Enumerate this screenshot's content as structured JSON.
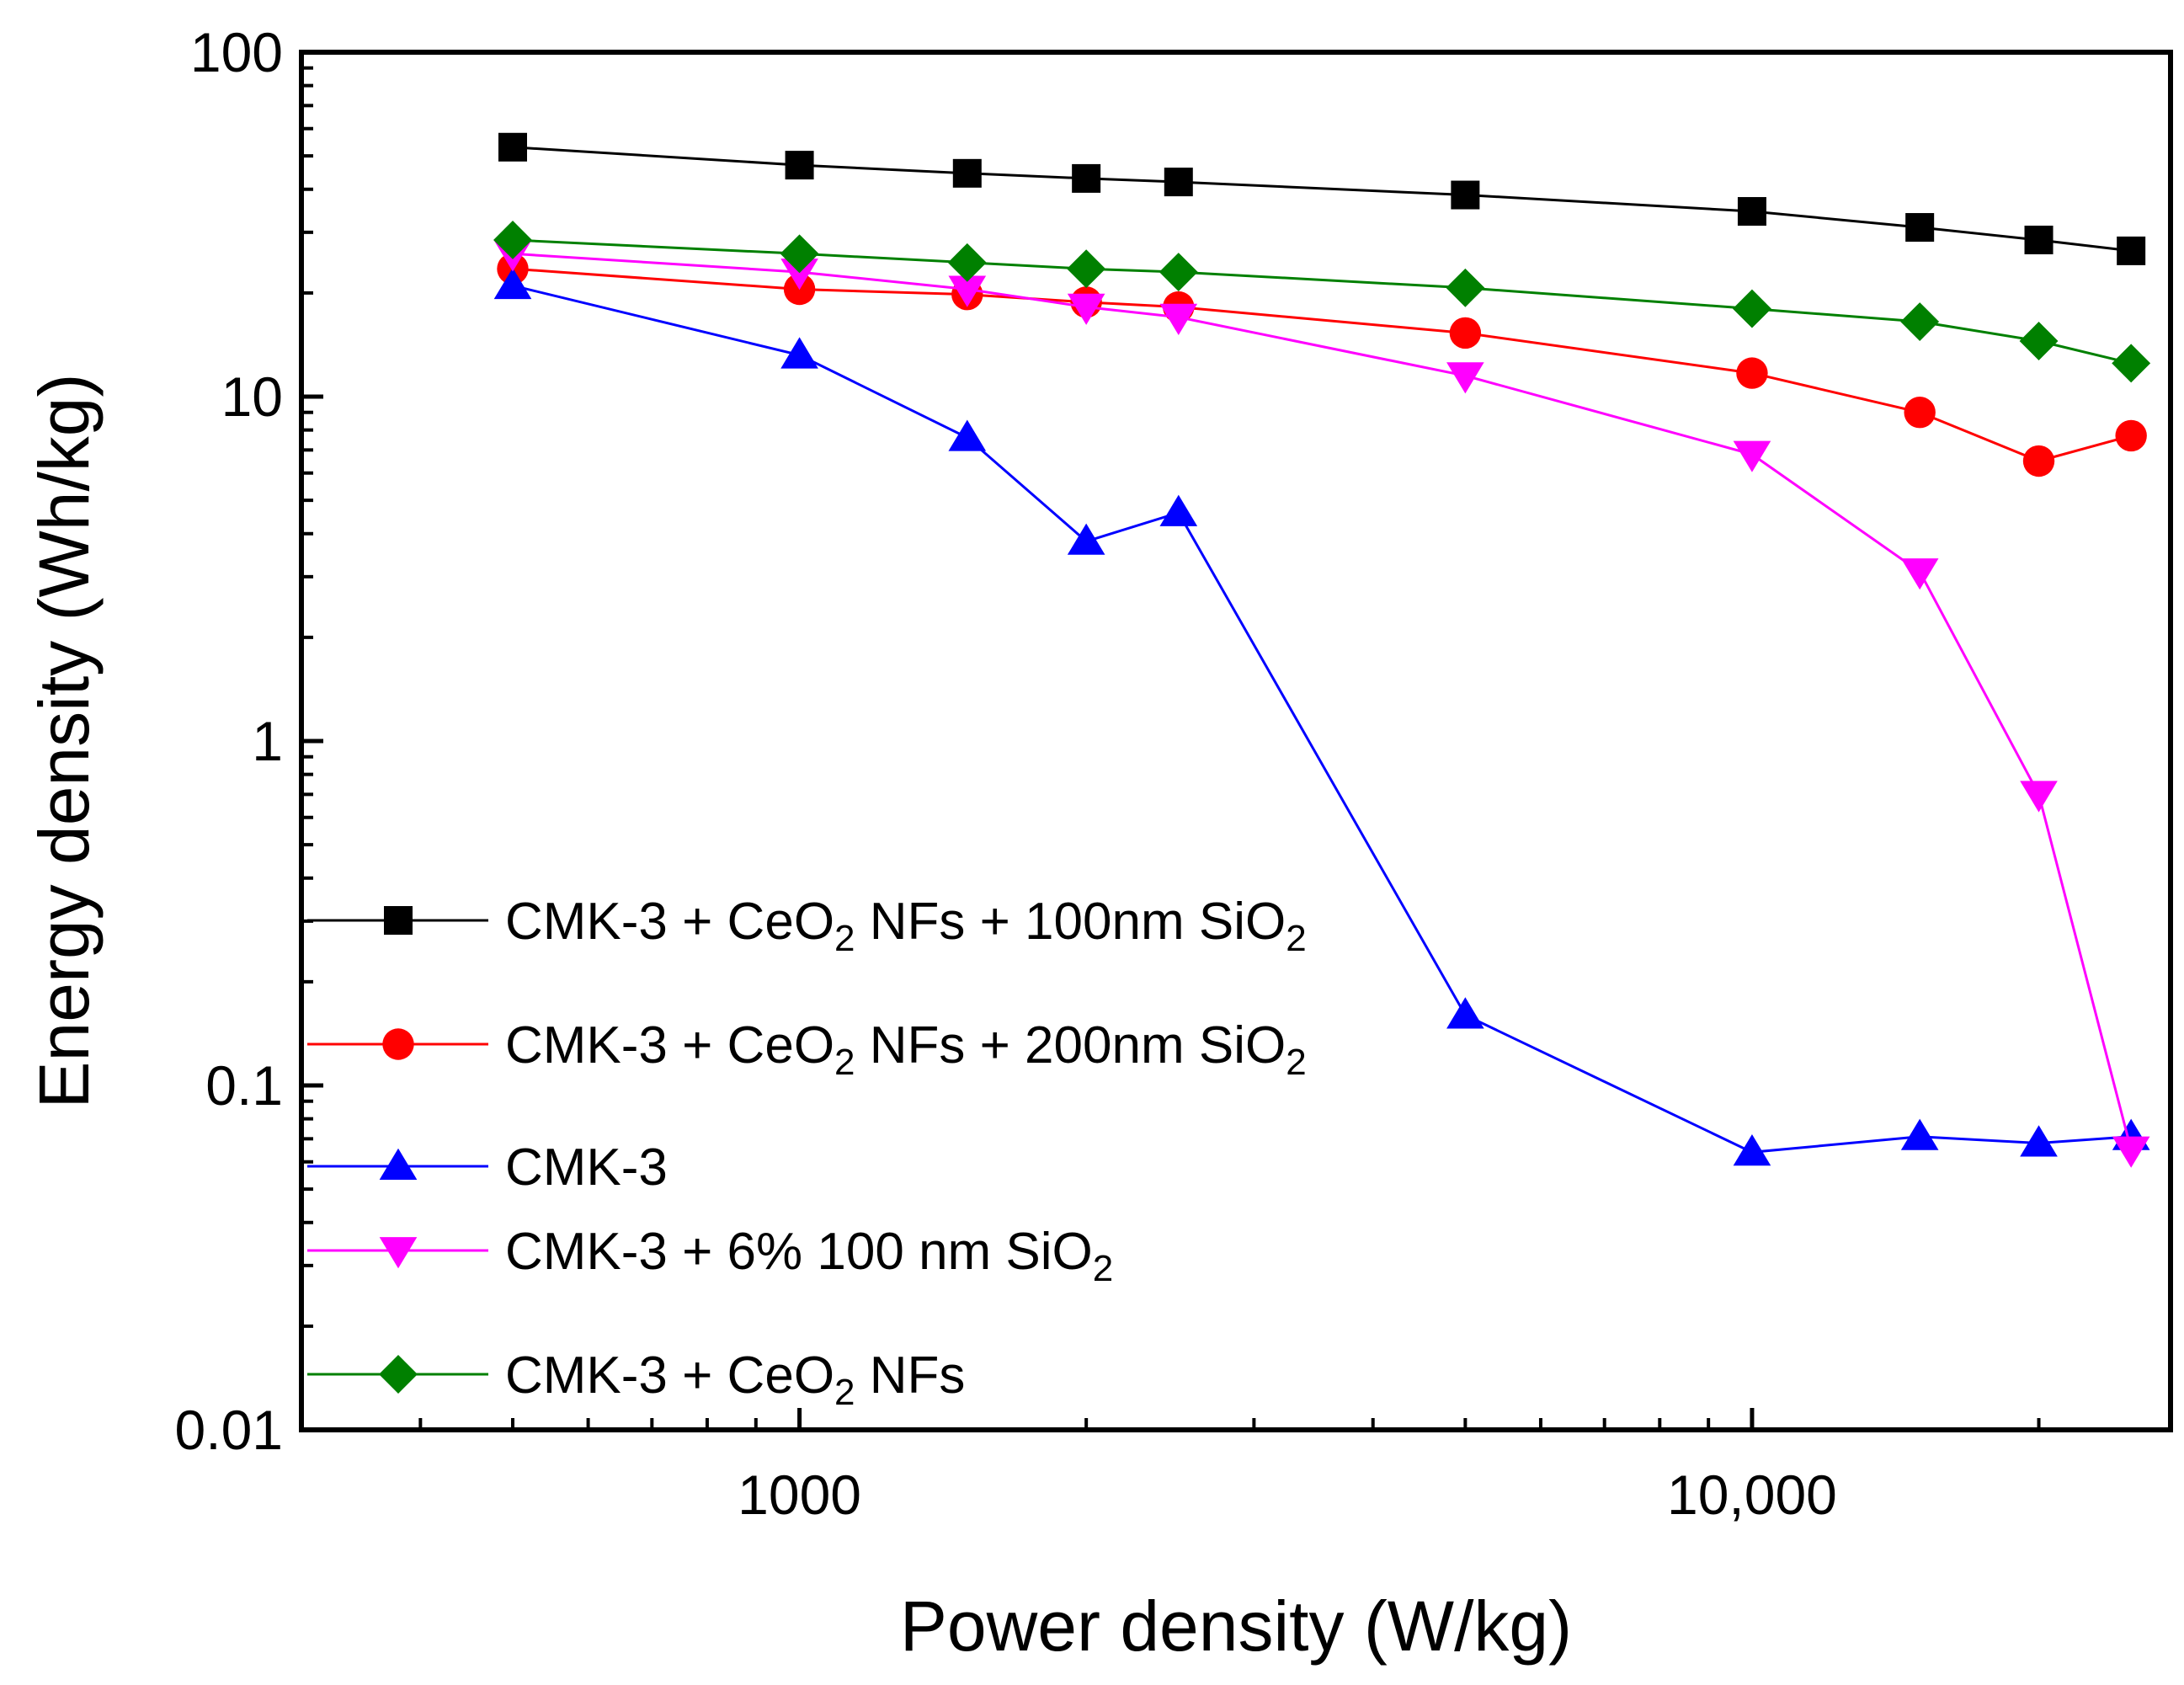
{
  "chart_data": {
    "type": "line",
    "title": "",
    "xlabel": "Power density (W/kg)",
    "ylabel": "Energy density (Wh/kg)",
    "xscale": "log",
    "yscale": "log",
    "xlim": [
      300,
      27500
    ],
    "ylim": [
      0.01,
      100
    ],
    "x_ticks": [
      {
        "value": 1000,
        "label": "1000"
      },
      {
        "value": 10000,
        "label": "10,000"
      }
    ],
    "y_ticks": [
      {
        "value": 100,
        "label": "100"
      },
      {
        "value": 10,
        "label": "10"
      },
      {
        "value": 1,
        "label": "1"
      },
      {
        "value": 0.1,
        "label": "0.1"
      },
      {
        "value": 0.01,
        "label": "0.01"
      }
    ],
    "grid": false,
    "legend_position": "lower-left",
    "series": [
      {
        "name": "CMK-3 + CeO2 NFs + 100nm SiO2",
        "legend_parts": [
          {
            "text": "CMK-3 + CeO"
          },
          {
            "text": "2",
            "sub": true
          },
          {
            "text": " NFs + 100nm SiO"
          },
          {
            "text": "2",
            "sub": true
          }
        ],
        "color": "#000000",
        "marker": "square",
        "x": [
          500,
          1000,
          1500,
          2000,
          2500,
          5000,
          10000,
          15000,
          20000,
          25000
        ],
        "y": [
          53,
          47,
          44.5,
          43,
          42,
          38.5,
          34.5,
          31,
          28.5,
          26.5
        ]
      },
      {
        "name": "CMK-3 + CeO2 NFs + 200nm SiO2",
        "legend_parts": [
          {
            "text": "CMK-3 + CeO"
          },
          {
            "text": "2",
            "sub": true
          },
          {
            "text": " NFs + 200nm SiO"
          },
          {
            "text": "2",
            "sub": true
          }
        ],
        "color": "#ff0000",
        "marker": "circle",
        "x": [
          500,
          1000,
          1500,
          2000,
          2500,
          5000,
          10000,
          15000,
          20000,
          25000
        ],
        "y": [
          23.5,
          20.5,
          19.8,
          18.8,
          18.2,
          15.3,
          11.7,
          9,
          6.5,
          7.7
        ]
      },
      {
        "name": "CMK-3",
        "legend_parts": [
          {
            "text": "CMK-3"
          }
        ],
        "color": "#0000ff",
        "marker": "triangle-up",
        "x": [
          500,
          1000,
          1500,
          2000,
          2500,
          5000,
          10000,
          15000,
          20000,
          25000
        ],
        "y": [
          21,
          13.2,
          7.6,
          3.8,
          4.6,
          0.16,
          0.064,
          0.071,
          0.068,
          0.071
        ]
      },
      {
        "name": "CMK-3 + 6% 100 nm SiO2",
        "legend_parts": [
          {
            "text": "CMK-3 + 6% 100 nm SiO"
          },
          {
            "text": "2",
            "sub": true
          }
        ],
        "color": "#ff00ff",
        "marker": "triangle-down",
        "x": [
          500,
          1000,
          1500,
          2000,
          2500,
          5000,
          10000,
          15000,
          20000,
          25000
        ],
        "y": [
          26,
          23,
          20.5,
          18.2,
          17,
          11.5,
          6.8,
          3.1,
          0.7,
          0.065
        ]
      },
      {
        "name": "CMK-3 + CeO2 NFs",
        "legend_parts": [
          {
            "text": "CMK-3 + CeO"
          },
          {
            "text": "2",
            "sub": true
          },
          {
            "text": " NFs"
          }
        ],
        "color": "#008000",
        "marker": "diamond",
        "x": [
          500,
          1000,
          1500,
          2000,
          2500,
          5000,
          10000,
          15000,
          20000,
          25000
        ],
        "y": [
          28.5,
          26,
          24.5,
          23.5,
          23,
          20.7,
          18,
          16.5,
          14.5,
          12.5
        ]
      }
    ]
  }
}
